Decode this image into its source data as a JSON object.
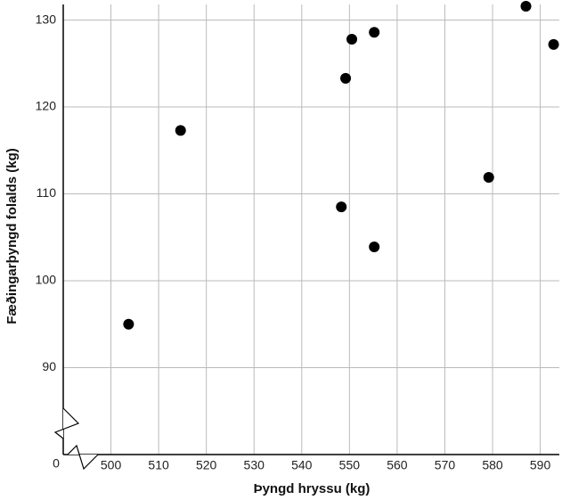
{
  "chart_data": {
    "type": "scatter",
    "x_label": "Þyngd hryssu (kg)",
    "y_label": "Fæðingarþyngd folalds (kg)",
    "origin_label": "0",
    "x": [
      503.7,
      514.6,
      548.3,
      549.2,
      550.5,
      555.2,
      555.2,
      579.2,
      587.0,
      592.8
    ],
    "values": [
      95.0,
      117.3,
      108.5,
      123.3,
      127.8,
      128.6,
      103.9,
      111.9,
      131.6,
      127.2
    ],
    "color": "#000000",
    "xlim": [
      490,
      594
    ],
    "xticks": [
      500,
      510,
      520,
      530,
      540,
      550,
      560,
      570,
      580,
      590
    ],
    "ylim": [
      80,
      131.8
    ],
    "yticks": [
      90,
      100,
      110,
      120,
      130
    ],
    "grid": true
  }
}
